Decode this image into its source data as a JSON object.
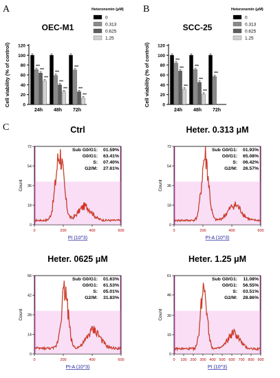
{
  "panels": {
    "a": "A",
    "b": "B",
    "c": "C"
  },
  "legend": {
    "title": "Heteronemin (μM)",
    "entries": [
      "0",
      "0.313",
      "0.625",
      "1.25"
    ]
  },
  "colors": {
    "bars": [
      "#000000",
      "#8a8a8a",
      "#5e5e5e",
      "#d0d0d0"
    ],
    "histogram": "#e8231f",
    "histogram_dark": "#7a5a20",
    "gate_fill": "#f4c2ef"
  },
  "chart_data": [
    {
      "type": "bar",
      "title": "OEC-M1",
      "ylabel": "Cell viability (% of control)",
      "categories": [
        "24h",
        "48h",
        "72h"
      ],
      "ylim": [
        0,
        120
      ],
      "yticks": [
        0,
        20,
        40,
        60,
        80,
        100,
        120
      ],
      "series": [
        {
          "name": "0",
          "values": [
            100,
            100,
            100
          ],
          "sig": [
            "",
            "",
            ""
          ]
        },
        {
          "name": "0.313",
          "values": [
            71,
            59,
            70
          ],
          "sig": [
            "***",
            "***",
            "***"
          ]
        },
        {
          "name": "0.625",
          "values": [
            64,
            40,
            26
          ],
          "sig": [
            "***",
            "***",
            "***"
          ]
        },
        {
          "name": "1.25",
          "values": [
            48,
            26,
            13
          ],
          "sig": [
            "***",
            "***",
            "***"
          ]
        }
      ]
    },
    {
      "type": "bar",
      "title": "SCC-25",
      "ylabel": "Cell viability (% of control)",
      "categories": [
        "24h",
        "48h",
        "72h"
      ],
      "ylim": [
        0,
        120
      ],
      "yticks": [
        0,
        20,
        40,
        60,
        80,
        100,
        120
      ],
      "series": [
        {
          "name": "0",
          "values": [
            100,
            100,
            100
          ],
          "sig": [
            "",
            "",
            ""
          ]
        },
        {
          "name": "0.313",
          "values": [
            84,
            71,
            57
          ],
          "sig": [
            "***",
            "***",
            "***"
          ]
        },
        {
          "name": "0.625",
          "values": [
            68,
            45,
            null
          ],
          "sig": [
            "***",
            "***",
            ""
          ]
        },
        {
          "name": "1.25",
          "values": [
            31,
            21,
            null
          ],
          "sig": [
            "***",
            "***",
            ""
          ]
        }
      ]
    },
    {
      "type": "area",
      "title": "Ctrl",
      "xlabel": "PI (10^3)",
      "ylabel": "Count",
      "xlim": [
        0,
        600
      ],
      "ylim": [
        0,
        72
      ],
      "xticks": [
        0,
        200,
        400,
        600
      ],
      "yticks": [
        0,
        18,
        36,
        54,
        72
      ],
      "peaks": [
        {
          "x": 175,
          "h": 61,
          "w": 28
        },
        {
          "x": 350,
          "h": 13,
          "w": 45
        }
      ],
      "base": 4,
      "stats": [
        {
          "label": "Sub G0/G1:",
          "value": "01.59%"
        },
        {
          "label": "G0/G1:",
          "value": "63.41%"
        },
        {
          "label": "S:",
          "value": "07.40%"
        },
        {
          "label": "G2/M:",
          "value": "27.61%"
        }
      ]
    },
    {
      "type": "area",
      "title": "Heter. 0.313 μM",
      "xlabel": "PI-A (10^3)",
      "ylabel": "Count",
      "xlim": [
        0,
        600
      ],
      "ylim": [
        0,
        72
      ],
      "xticks": [
        0,
        200,
        400,
        600
      ],
      "yticks": [
        0,
        18,
        36,
        54,
        72
      ],
      "peaks": [
        {
          "x": 215,
          "h": 58,
          "w": 24
        },
        {
          "x": 420,
          "h": 14,
          "w": 45
        }
      ],
      "base": 4,
      "stats": [
        {
          "label": "Sub G0/G1:",
          "value": "01.93%"
        },
        {
          "label": "G0/G1:",
          "value": "65.08%"
        },
        {
          "label": "S:",
          "value": "06.42%"
        },
        {
          "label": "G2/M:",
          "value": "26.57%"
        }
      ]
    },
    {
      "type": "area",
      "title": "Heter. 0625 μM",
      "xlabel": "PI-A (10^3)",
      "ylabel": "Count",
      "xlim": [
        0,
        600
      ],
      "ylim": [
        0,
        56
      ],
      "xticks": [
        0,
        200,
        400,
        600
      ],
      "yticks": [
        0,
        14,
        28,
        42,
        56
      ],
      "peaks": [
        {
          "x": 210,
          "h": 42,
          "w": 24
        },
        {
          "x": 410,
          "h": 13,
          "w": 45
        }
      ],
      "base": 4,
      "stats": [
        {
          "label": "Sub G0/G1:",
          "value": "01.63%"
        },
        {
          "label": "G0/G1:",
          "value": "61.53%"
        },
        {
          "label": "S:",
          "value": "05.01%"
        },
        {
          "label": "G2/M:",
          "value": "31.83%"
        }
      ]
    },
    {
      "type": "area",
      "title": "Heter. 1.25 μM",
      "xlabel": "PI (10^3)",
      "ylabel": "Count",
      "xlim": [
        0,
        900
      ],
      "ylim": [
        0,
        61
      ],
      "xticks": [
        0,
        100,
        200,
        300,
        400,
        500,
        600,
        700,
        800,
        900
      ],
      "yticks": [
        0,
        15,
        30,
        46,
        61
      ],
      "peaks": [
        {
          "x": 310,
          "h": 50,
          "w": 32
        },
        {
          "x": 620,
          "h": 12,
          "w": 60
        }
      ],
      "base": 4,
      "stats": [
        {
          "label": "Sub G0/G1:",
          "value": "11.08%"
        },
        {
          "label": "G0/G1:",
          "value": "56.55%"
        },
        {
          "label": "S:",
          "value": "03.51%"
        },
        {
          "label": "G2/M:",
          "value": "28.86%"
        }
      ]
    }
  ]
}
